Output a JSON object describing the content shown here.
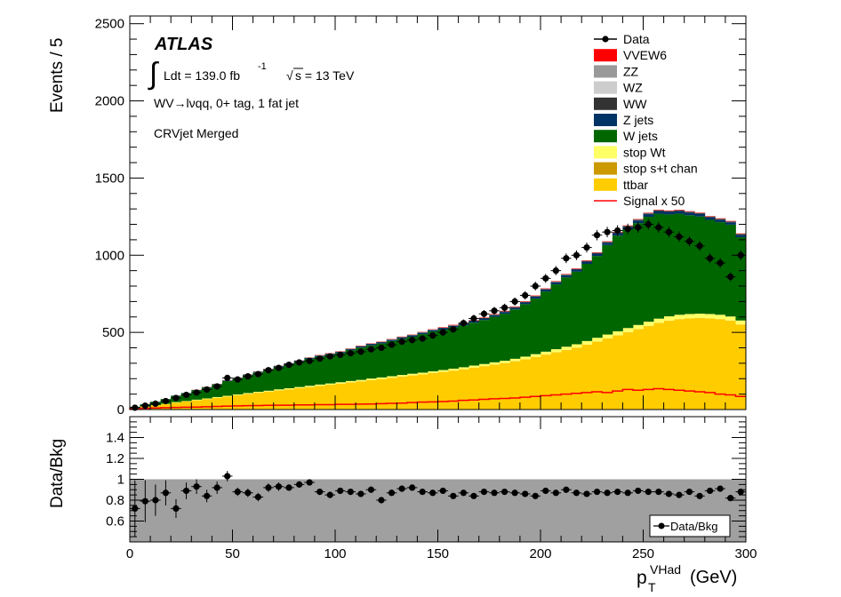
{
  "chart_data": {
    "type": "bar",
    "stacked": true,
    "title": "",
    "experiment": "ATLAS",
    "lumi_text": "Ldt = 139.0 fb",
    "lumi_unit_exp": "-1",
    "energy_text": "s = 13 TeV",
    "sqrt_symbol": "√",
    "integral_symbol": "∫",
    "channel_label": "WV→lνqq, 0+ tag, 1 fat jet",
    "region_label": "CRVjet Merged",
    "xlabel_main": "p",
    "xlabel_sub": "T",
    "xlabel_sup": "VHad",
    "xlabel_unit": "(GeV)",
    "ylabel": "Events / 5",
    "ratio_ylabel": "Data/Bkg",
    "xlim": [
      0,
      300
    ],
    "ylim": [
      0,
      2550
    ],
    "ratio_ylim": [
      0.4,
      1.6
    ],
    "bin_width": 5,
    "bin_edges_start": [
      0,
      5,
      10,
      15,
      20,
      25,
      30,
      35,
      40,
      45,
      50,
      55,
      60,
      65,
      70,
      75,
      80,
      85,
      90,
      95,
      100,
      105,
      110,
      115,
      120,
      125,
      130,
      135,
      140,
      145,
      150,
      155,
      160,
      165,
      170,
      175,
      180,
      185,
      190,
      195,
      200,
      205,
      210,
      215,
      220,
      225,
      230,
      235,
      240,
      245,
      250,
      255,
      260,
      265,
      270,
      275,
      280,
      285,
      290,
      295
    ],
    "x_ticks": [
      0,
      50,
      100,
      150,
      200,
      250,
      300
    ],
    "y_ticks": [
      0,
      500,
      1000,
      1500,
      2000,
      2500
    ],
    "ratio_y_ticks": [
      0.6,
      0.8,
      1,
      1.2,
      1.4
    ],
    "ratio_y_tick_labels": [
      "0.6",
      "0.8",
      "1",
      "1.2",
      "1.4"
    ],
    "series": [
      {
        "name": "ttbar",
        "color": "#ffcc00",
        "values": [
          8,
          18,
          26,
          35,
          45,
          52,
          60,
          68,
          76,
          84,
          92,
          100,
          108,
          115,
          123,
          130,
          138,
          145,
          153,
          160,
          167,
          175,
          182,
          190,
          197,
          205,
          212,
          220,
          227,
          235,
          243,
          251,
          260,
          270,
          280,
          290,
          300,
          312,
          325,
          340,
          355,
          370,
          385,
          400,
          420,
          440,
          460,
          480,
          500,
          520,
          540,
          560,
          575,
          585,
          590,
          592,
          590,
          585,
          575,
          550
        ]
      },
      {
        "name": "stop s+t chan",
        "color": "#cc9900",
        "values": [
          0,
          0,
          0,
          0,
          0,
          0,
          0,
          0,
          0,
          0,
          1,
          1,
          1,
          1,
          1,
          1,
          1,
          1,
          1,
          1,
          1,
          1,
          1,
          1,
          1,
          1,
          1,
          1,
          1,
          1,
          1,
          1,
          1,
          1,
          1,
          1,
          1,
          1,
          1,
          1,
          1,
          1,
          1,
          1,
          1,
          1,
          1,
          1,
          1,
          1,
          1,
          1,
          1,
          1,
          1,
          1,
          1,
          1,
          1,
          1
        ]
      },
      {
        "name": "stop Wt",
        "color": "#ffff66",
        "values": [
          0,
          1,
          2,
          2,
          3,
          3,
          4,
          4,
          5,
          5,
          5,
          6,
          6,
          6,
          7,
          7,
          7,
          8,
          8,
          8,
          9,
          9,
          9,
          10,
          10,
          10,
          11,
          11,
          11,
          12,
          12,
          13,
          13,
          14,
          14,
          15,
          15,
          16,
          17,
          18,
          19,
          20,
          21,
          22,
          23,
          24,
          25,
          26,
          27,
          27,
          28,
          28,
          28,
          28,
          28,
          28,
          28,
          28,
          27,
          26
        ]
      },
      {
        "name": "W jets",
        "color": "#006600",
        "values": [
          10,
          15,
          22,
          30,
          40,
          50,
          60,
          70,
          80,
          95,
          105,
          115,
          125,
          135,
          145,
          155,
          165,
          175,
          180,
          185,
          190,
          200,
          210,
          215,
          220,
          228,
          235,
          240,
          250,
          258,
          262,
          268,
          272,
          278,
          285,
          295,
          305,
          320,
          340,
          360,
          390,
          420,
          450,
          470,
          500,
          530,
          580,
          620,
          640,
          660,
          680,
          680,
          660,
          655,
          640,
          630,
          610,
          600,
          595,
          540
        ]
      },
      {
        "name": "Z jets",
        "color": "#003366",
        "values": [
          0,
          1,
          1,
          1,
          2,
          2,
          2,
          3,
          3,
          3,
          3,
          4,
          4,
          4,
          5,
          5,
          5,
          5,
          6,
          6,
          6,
          6,
          7,
          7,
          7,
          7,
          8,
          8,
          8,
          8,
          9,
          9,
          9,
          10,
          10,
          10,
          11,
          11,
          11,
          12,
          12,
          13,
          13,
          14,
          14,
          15,
          15,
          16,
          16,
          17,
          17,
          17,
          17,
          17,
          17,
          16,
          16,
          16,
          15,
          15
        ]
      },
      {
        "name": "WW",
        "color": "#333333",
        "values": [
          0,
          0,
          0,
          1,
          1,
          1,
          1,
          1,
          1,
          1,
          1,
          1,
          2,
          2,
          2,
          2,
          2,
          2,
          2,
          2,
          2,
          2,
          2,
          3,
          3,
          3,
          3,
          3,
          3,
          3,
          3,
          3,
          3,
          3,
          3,
          4,
          4,
          4,
          4,
          4,
          4,
          4,
          4,
          4,
          5,
          5,
          5,
          5,
          5,
          5,
          5,
          5,
          5,
          5,
          5,
          5,
          5,
          5,
          5,
          5
        ]
      },
      {
        "name": "WZ",
        "color": "#cccccc",
        "values": [
          0,
          0,
          0,
          0,
          0,
          0,
          0,
          0,
          0,
          0,
          1,
          1,
          1,
          1,
          1,
          1,
          1,
          1,
          1,
          1,
          1,
          1,
          1,
          1,
          1,
          1,
          1,
          1,
          1,
          1,
          1,
          1,
          1,
          1,
          1,
          1,
          1,
          1,
          1,
          1,
          1,
          1,
          1,
          1,
          1,
          1,
          1,
          1,
          1,
          1,
          1,
          1,
          1,
          1,
          1,
          1,
          1,
          1,
          1,
          1
        ]
      },
      {
        "name": "ZZ",
        "color": "#999999",
        "values": [
          0,
          0,
          0,
          0,
          0,
          0,
          0,
          0,
          0,
          0,
          0,
          0,
          0,
          0,
          0,
          0,
          0,
          0,
          0,
          0,
          0,
          0,
          0,
          0,
          0,
          0,
          0,
          0,
          0,
          0,
          0,
          0,
          0,
          0,
          0,
          0,
          0,
          0,
          0,
          0,
          0,
          0,
          0,
          0,
          0,
          0,
          0,
          0,
          0,
          0,
          0,
          0,
          0,
          0,
          0,
          0,
          0,
          0,
          0,
          0
        ]
      },
      {
        "name": "VVEW6",
        "color": "#ff0000",
        "values": [
          0,
          0,
          0,
          0,
          0,
          0,
          1,
          1,
          1,
          1,
          1,
          1,
          1,
          1,
          1,
          1,
          1,
          1,
          2,
          2,
          2,
          2,
          2,
          2,
          2,
          2,
          2,
          2,
          2,
          2,
          3,
          3,
          3,
          3,
          3,
          3,
          3,
          3,
          3,
          3,
          3,
          3,
          3,
          3,
          3,
          3,
          3,
          3,
          3,
          3,
          3,
          3,
          3,
          3,
          3,
          3,
          3,
          3,
          3,
          3
        ]
      }
    ],
    "signal": {
      "name": "Signal x 50",
      "color": "#ff0000",
      "values": [
        5,
        8,
        10,
        12,
        14,
        15,
        16,
        18,
        20,
        22,
        24,
        25,
        26,
        27,
        28,
        28,
        30,
        30,
        32,
        32,
        34,
        34,
        35,
        36,
        38,
        40,
        42,
        45,
        48,
        50,
        52,
        55,
        60,
        62,
        66,
        70,
        72,
        75,
        80,
        85,
        90,
        95,
        100,
        105,
        110,
        115,
        110,
        120,
        130,
        125,
        130,
        135,
        130,
        125,
        120,
        115,
        110,
        100,
        95,
        85
      ]
    },
    "data": {
      "name": "Data",
      "values": [
        12,
        25,
        38,
        55,
        75,
        95,
        110,
        130,
        150,
        205,
        195,
        215,
        230,
        255,
        270,
        290,
        305,
        315,
        330,
        345,
        355,
        365,
        375,
        390,
        400,
        420,
        440,
        450,
        460,
        480,
        500,
        520,
        560,
        590,
        620,
        640,
        660,
        700,
        740,
        800,
        850,
        900,
        980,
        1000,
        1050,
        1130,
        1150,
        1160,
        1170,
        1180,
        1200,
        1180,
        1150,
        1120,
        1090,
        1060,
        980,
        950,
        860,
        1000
      ]
    },
    "ratio": {
      "name": "Data/Bkg",
      "values": [
        0.72,
        0.79,
        0.8,
        0.87,
        0.72,
        0.89,
        0.93,
        0.84,
        0.92,
        1.03,
        0.88,
        0.87,
        0.83,
        0.92,
        0.93,
        0.92,
        0.95,
        0.97,
        0.88,
        0.85,
        0.89,
        0.88,
        0.86,
        0.9,
        0.8,
        0.87,
        0.91,
        0.92,
        0.88,
        0.87,
        0.89,
        0.84,
        0.87,
        0.84,
        0.88,
        0.87,
        0.88,
        0.87,
        0.86,
        0.84,
        0.89,
        0.87,
        0.9,
        0.87,
        0.86,
        0.88,
        0.87,
        0.88,
        0.87,
        0.89,
        0.88,
        0.88,
        0.86,
        0.85,
        0.88,
        0.84,
        0.89,
        0.91,
        0.82,
        0.88
      ],
      "errors_lo": [
        0.27,
        0.2,
        0.15,
        0.12,
        0.09,
        0.08,
        0.07,
        0.06,
        0.06,
        0.05,
        0.04,
        0.04,
        0.04,
        0.04,
        0.04,
        0.03,
        0.03,
        0.03,
        0.03,
        0.03,
        0.03,
        0.03,
        0.03,
        0.03,
        0.03,
        0.03,
        0.03,
        0.02,
        0.02,
        0.02,
        0.02,
        0.02,
        0.02,
        0.02,
        0.02,
        0.02,
        0.02,
        0.02,
        0.02,
        0.02,
        0.02,
        0.02,
        0.02,
        0.02,
        0.02,
        0.02,
        0.02,
        0.02,
        0.02,
        0.02,
        0.02,
        0.02,
        0.02,
        0.02,
        0.02,
        0.02,
        0.02,
        0.02,
        0.02,
        0.02
      ]
    },
    "legend": [
      {
        "name": "Data",
        "kind": "marker",
        "color": "#000000"
      },
      {
        "name": "VVEW6",
        "kind": "fill",
        "color": "#ff0000"
      },
      {
        "name": "ZZ",
        "kind": "fill",
        "color": "#999999"
      },
      {
        "name": "WZ",
        "kind": "fill",
        "color": "#cccccc"
      },
      {
        "name": "WW",
        "kind": "fill",
        "color": "#333333"
      },
      {
        "name": "Z jets",
        "kind": "fill",
        "color": "#003366"
      },
      {
        "name": "W jets",
        "kind": "fill",
        "color": "#006600"
      },
      {
        "name": "stop Wt",
        "kind": "fill",
        "color": "#ffff66"
      },
      {
        "name": "stop s+t chan",
        "kind": "fill",
        "color": "#cc9900"
      },
      {
        "name": "ttbar",
        "kind": "fill",
        "color": "#ffcc00"
      },
      {
        "name": "Signal x 50",
        "kind": "line",
        "color": "#ff0000"
      }
    ],
    "legend_placement": "top-right",
    "ratio_legend": "Data/Bkg",
    "ratio_band_color": "#a0a0a0"
  }
}
